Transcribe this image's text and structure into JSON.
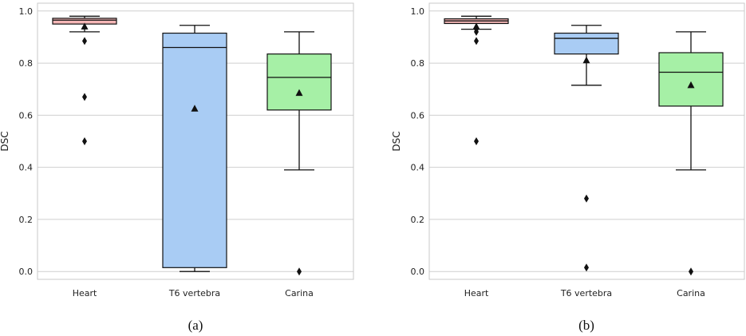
{
  "chart_data": [
    {
      "type": "box",
      "panel_label": "(a)",
      "ylabel": "DSC",
      "ylim": [
        -0.03,
        1.03
      ],
      "yticks": [
        0.0,
        0.2,
        0.4,
        0.6,
        0.8,
        1.0
      ],
      "ytick_labels": [
        "0.0",
        "0.2",
        "0.4",
        "0.6",
        "0.8",
        "1.0"
      ],
      "grid": "horizontal",
      "categories": [
        "Heart",
        "T6 vertebra",
        "Carina"
      ],
      "colors": [
        "#f4b6b6",
        "#a9ccf4",
        "#a6f0a6"
      ],
      "boxes": [
        {
          "name": "Heart",
          "whislo": 0.92,
          "q1": 0.95,
          "median": 0.965,
          "q3": 0.972,
          "whishi": 0.98,
          "mean": 0.94,
          "fliers": [
            0.885,
            0.67,
            0.5
          ]
        },
        {
          "name": "T6 vertebra",
          "whislo": 0.0,
          "q1": 0.015,
          "median": 0.86,
          "q3": 0.915,
          "whishi": 0.945,
          "mean": 0.625,
          "fliers": []
        },
        {
          "name": "Carina",
          "whislo": 0.39,
          "q1": 0.62,
          "median": 0.745,
          "q3": 0.835,
          "whishi": 0.92,
          "mean": 0.685,
          "fliers": [
            0.0
          ]
        }
      ]
    },
    {
      "type": "box",
      "panel_label": "(b)",
      "ylabel": "DSC",
      "ylim": [
        -0.03,
        1.03
      ],
      "yticks": [
        0.0,
        0.2,
        0.4,
        0.6,
        0.8,
        1.0
      ],
      "ytick_labels": [
        "0.0",
        "0.2",
        "0.4",
        "0.6",
        "0.8",
        "1.0"
      ],
      "grid": "horizontal",
      "categories": [
        "Heart",
        "T6 vertebra",
        "Carina"
      ],
      "colors": [
        "#f4b6b6",
        "#a9ccf4",
        "#a6f0a6"
      ],
      "boxes": [
        {
          "name": "Heart",
          "whislo": 0.93,
          "q1": 0.952,
          "median": 0.962,
          "q3": 0.97,
          "whishi": 0.98,
          "mean": 0.94,
          "fliers": [
            0.93,
            0.92,
            0.885,
            0.5
          ]
        },
        {
          "name": "T6 vertebra",
          "whislo": 0.715,
          "q1": 0.835,
          "median": 0.895,
          "q3": 0.915,
          "whishi": 0.945,
          "mean": 0.81,
          "fliers": [
            0.28,
            0.015
          ]
        },
        {
          "name": "Carina",
          "whislo": 0.39,
          "q1": 0.635,
          "median": 0.765,
          "q3": 0.84,
          "whishi": 0.92,
          "mean": 0.715,
          "fliers": [
            0.0
          ]
        }
      ]
    }
  ]
}
